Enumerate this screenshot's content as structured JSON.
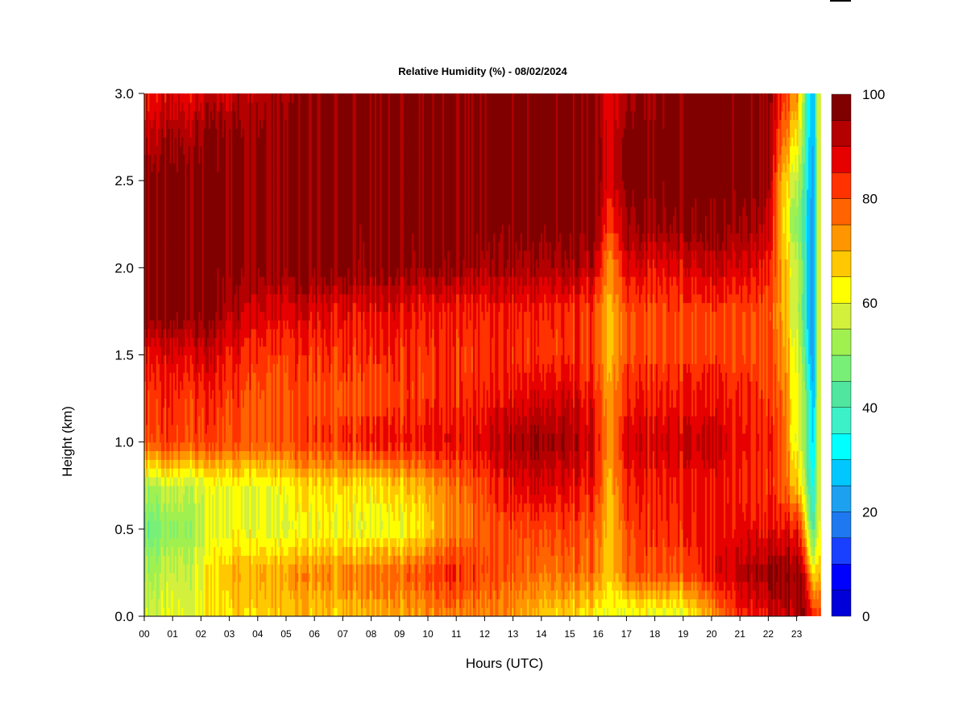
{
  "chart_data": {
    "type": "heatmap",
    "title": "Relative Humidity (%) - 08/02/2024",
    "xlabel": "Hours (UTC)",
    "ylabel": "Height (km)",
    "x_ticks": [
      "00",
      "01",
      "02",
      "03",
      "04",
      "05",
      "06",
      "07",
      "08",
      "09",
      "10",
      "11",
      "12",
      "13",
      "14",
      "15",
      "16",
      "17",
      "18",
      "19",
      "20",
      "21",
      "22",
      "23"
    ],
    "xlim": [
      0,
      24
    ],
    "y_ticks": [
      "0.0",
      "0.5",
      "1.0",
      "1.5",
      "2.0",
      "2.5",
      "3.0"
    ],
    "ylim": [
      0,
      3.0
    ],
    "colorbar": {
      "range": [
        0,
        100
      ],
      "ticks": [
        "0",
        "20",
        "40",
        "60",
        "80",
        "100"
      ],
      "levels": 20,
      "colors": [
        "#00008B",
        "#0000B0",
        "#0000D8",
        "#0000FF",
        "#1A40FF",
        "#1E78F0",
        "#1EA0F0",
        "#00C8FF",
        "#00FFFF",
        "#3CF0C8",
        "#50E6A0",
        "#78F078",
        "#A0F050",
        "#D2F03C",
        "#FFFF00",
        "#FFC800",
        "#FF9600",
        "#FF6400",
        "#FF3200",
        "#E60000",
        "#B40000",
        "#800000"
      ]
    },
    "grid": false,
    "legend": "colorbar-right",
    "values_description_rows_km": [
      0.0,
      0.25,
      0.5,
      0.75,
      1.0,
      1.25,
      1.5,
      1.75,
      2.0,
      2.25,
      2.5,
      2.75,
      3.0
    ],
    "values_by_hour": [
      {
        "hour": 0,
        "rh": [
          62,
          58,
          52,
          58,
          84,
          86,
          90,
          100,
          100,
          100,
          100,
          94,
          90
        ]
      },
      {
        "hour": 1,
        "rh": [
          62,
          60,
          54,
          60,
          84,
          86,
          90,
          100,
          100,
          100,
          100,
          96,
          90
        ]
      },
      {
        "hour": 2,
        "rh": [
          66,
          64,
          60,
          62,
          84,
          86,
          92,
          100,
          100,
          100,
          100,
          98,
          92
        ]
      },
      {
        "hour": 3,
        "rh": [
          70,
          74,
          66,
          66,
          84,
          86,
          90,
          96,
          100,
          100,
          100,
          100,
          94
        ]
      },
      {
        "hour": 4,
        "rh": [
          72,
          76,
          66,
          66,
          84,
          84,
          88,
          94,
          100,
          100,
          100,
          100,
          96
        ]
      },
      {
        "hour": 5,
        "rh": [
          72,
          76,
          64,
          68,
          84,
          84,
          86,
          92,
          100,
          100,
          100,
          100,
          98
        ]
      },
      {
        "hour": 6,
        "rh": [
          72,
          78,
          66,
          70,
          86,
          84,
          86,
          92,
          100,
          100,
          100,
          100,
          100
        ]
      },
      {
        "hour": 7,
        "rh": [
          72,
          78,
          66,
          70,
          86,
          82,
          86,
          90,
          100,
          100,
          100,
          100,
          100
        ]
      },
      {
        "hour": 8,
        "rh": [
          74,
          80,
          64,
          68,
          88,
          84,
          86,
          90,
          98,
          100,
          100,
          100,
          100
        ]
      },
      {
        "hour": 9,
        "rh": [
          74,
          80,
          64,
          70,
          88,
          84,
          86,
          90,
          98,
          100,
          100,
          100,
          100
        ]
      },
      {
        "hour": 10,
        "rh": [
          76,
          84,
          70,
          74,
          90,
          86,
          86,
          88,
          98,
          100,
          100,
          100,
          100
        ]
      },
      {
        "hour": 11,
        "rh": [
          78,
          88,
          78,
          80,
          90,
          86,
          86,
          88,
          98,
          100,
          100,
          100,
          100
        ]
      },
      {
        "hour": 12,
        "rh": [
          78,
          84,
          82,
          84,
          92,
          88,
          86,
          88,
          96,
          100,
          100,
          100,
          100
        ]
      },
      {
        "hour": 13,
        "rh": [
          76,
          82,
          84,
          90,
          96,
          90,
          86,
          88,
          96,
          100,
          100,
          100,
          100
        ]
      },
      {
        "hour": 14,
        "rh": [
          72,
          80,
          84,
          92,
          98,
          92,
          86,
          88,
          96,
          100,
          100,
          100,
          100
        ]
      },
      {
        "hour": 15,
        "rh": [
          70,
          80,
          84,
          90,
          96,
          92,
          86,
          86,
          96,
          100,
          100,
          100,
          100
        ]
      },
      {
        "hour": 16,
        "rh": [
          66,
          80,
          82,
          88,
          92,
          88,
          84,
          84,
          94,
          100,
          100,
          100,
          100
        ]
      },
      {
        "hour": 16.5,
        "rh": [
          64,
          70,
          70,
          72,
          74,
          74,
          72,
          72,
          74,
          84,
          90,
          90,
          88
        ]
      },
      {
        "hour": 17,
        "rh": [
          64,
          82,
          84,
          88,
          92,
          88,
          84,
          84,
          92,
          98,
          100,
          100,
          98
        ]
      },
      {
        "hour": 18,
        "rh": [
          64,
          84,
          86,
          88,
          92,
          88,
          84,
          84,
          90,
          98,
          100,
          100,
          98
        ]
      },
      {
        "hour": 19,
        "rh": [
          62,
          82,
          86,
          88,
          92,
          88,
          84,
          84,
          90,
          98,
          100,
          100,
          100
        ]
      },
      {
        "hour": 20,
        "rh": [
          72,
          88,
          88,
          88,
          92,
          88,
          84,
          84,
          92,
          98,
          100,
          100,
          100
        ]
      },
      {
        "hour": 21,
        "rh": [
          86,
          94,
          90,
          88,
          90,
          88,
          84,
          84,
          92,
          98,
          100,
          100,
          100
        ]
      },
      {
        "hour": 22,
        "rh": [
          90,
          98,
          90,
          86,
          88,
          86,
          84,
          84,
          90,
          96,
          100,
          100,
          100
        ]
      },
      {
        "hour": 22.6,
        "rh": [
          92,
          98,
          88,
          82,
          82,
          80,
          76,
          74,
          74,
          70,
          72,
          80,
          86
        ]
      },
      {
        "hour": 23.1,
        "rh": [
          98,
          100,
          92,
          74,
          66,
          68,
          66,
          62,
          64,
          56,
          62,
          70,
          80
        ]
      },
      {
        "hour": 23.5,
        "rh": [
          96,
          86,
          64,
          52,
          48,
          48,
          40,
          36,
          36,
          36,
          38,
          40,
          40
        ]
      },
      {
        "hour": 23.7,
        "rh": [
          90,
          70,
          48,
          40,
          36,
          32,
          28,
          28,
          28,
          30,
          30,
          32,
          32
        ]
      },
      {
        "hour": 23.85,
        "rh": [
          84,
          70,
          62,
          60,
          60,
          60,
          60,
          60,
          60,
          60,
          60,
          60,
          60
        ]
      }
    ]
  }
}
